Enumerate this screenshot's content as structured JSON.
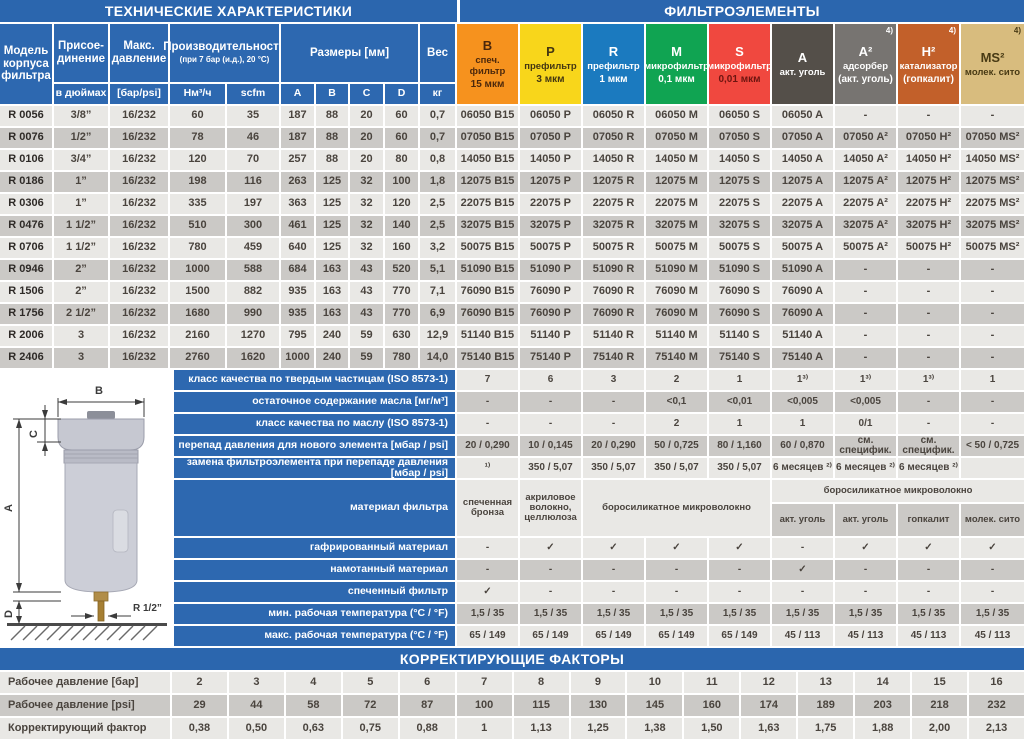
{
  "titles": {
    "tech": "ТЕХНИЧЕСКИЕ ХАРАКТЕРИСТИКИ",
    "elements": "ФИЛЬТРОЭЛЕМЕНТЫ",
    "correction": "КОРРЕКТИРУЮЩИЕ ФАКТОРЫ"
  },
  "colors": {
    "accent_blue": "#2b66ae",
    "row_light": "#e9e8e5",
    "row_dark": "#cbc9c6"
  },
  "tech_header": {
    "model": "Модель\nкорпуса\nфильтра",
    "connection": "Присое-\nдинение",
    "connection_sub": "в дюймах",
    "max_pressure": "Макс.\nдавление",
    "max_pressure_sub": "[бар/psi]",
    "capacity": "Производительность",
    "capacity_note": "(при 7 бар (и.д.), 20 °C)",
    "capacity_sub_nm3": "Нм³/ч",
    "capacity_sub_scfm": "scfm",
    "dimensions": "Размеры [мм]",
    "dim_subs": [
      "A",
      "B",
      "C",
      "D"
    ],
    "weight": "Вес",
    "weight_sub": "кг"
  },
  "element_headers": [
    {
      "code": "B",
      "l1": "спеч. фильтр",
      "l2": "15 мкм",
      "note": "",
      "bg": "#f6921e",
      "fg": "#4c280c",
      "fg2": "#4c280c"
    },
    {
      "code": "P",
      "l1": "префильтр",
      "l2": "3 мкм",
      "note": "",
      "bg": "#f8d61b",
      "fg": "#443712",
      "fg2": "#443712"
    },
    {
      "code": "R",
      "l1": "префильтр",
      "l2": "1 мкм",
      "note": "",
      "bg": "#1b7abf",
      "fg": "#ffffff",
      "fg2": "#ffffff"
    },
    {
      "code": "M",
      "l1": "микрофильтр",
      "l2": "0,1 мкм",
      "note": "",
      "bg": "#10a452",
      "fg": "#ffffff",
      "fg2": "#ffffff"
    },
    {
      "code": "S",
      "l1": "микрофильтр",
      "l2": "0,01 мкм",
      "note": "",
      "bg": "#f0483f",
      "fg": "#ffffff",
      "fg2": "#6d1510"
    },
    {
      "code": "A",
      "l1": "акт. уголь",
      "l2": "",
      "note": "",
      "bg": "#544f49",
      "fg": "#ffffff",
      "fg2": "#ffffff"
    },
    {
      "code": "A²",
      "l1": "адсорбер",
      "l2": "(акт. уголь)",
      "note": "4)",
      "bg": "#777471",
      "fg": "#ffffff",
      "fg2": "#ffffff"
    },
    {
      "code": "H²",
      "l1": "катализатор",
      "l2": "(гопкалит)",
      "note": "4)",
      "bg": "#c2602a",
      "fg": "#ffffff",
      "fg2": "#ffffff"
    },
    {
      "code": "MS²",
      "l1": "молек. сито",
      "l2": "",
      "note": "4)",
      "bg": "#d8bc7e",
      "fg": "#483a14",
      "fg2": "#483a14"
    }
  ],
  "body_rows": [
    {
      "model": "R 0056",
      "tech": [
        "3/8”",
        "16/232",
        "60",
        "35",
        "187",
        "88",
        "20",
        "60",
        "0,7"
      ],
      "elements": [
        "06050 B15",
        "06050 P",
        "06050 R",
        "06050 M",
        "06050 S",
        "06050 A",
        "-",
        "-",
        "-"
      ]
    },
    {
      "model": "R 0076",
      "tech": [
        "1/2”",
        "16/232",
        "78",
        "46",
        "187",
        "88",
        "20",
        "60",
        "0,7"
      ],
      "elements": [
        "07050 B15",
        "07050 P",
        "07050 R",
        "07050 M",
        "07050 S",
        "07050 A",
        "07050 A²",
        "07050 H²",
        "07050 MS²"
      ]
    },
    {
      "model": "R 0106",
      "tech": [
        "3/4”",
        "16/232",
        "120",
        "70",
        "257",
        "88",
        "20",
        "80",
        "0,8"
      ],
      "elements": [
        "14050 B15",
        "14050 P",
        "14050 R",
        "14050 M",
        "14050 S",
        "14050 A",
        "14050 A²",
        "14050 H²",
        "14050 MS²"
      ]
    },
    {
      "model": "R 0186",
      "tech": [
        "1”",
        "16/232",
        "198",
        "116",
        "263",
        "125",
        "32",
        "100",
        "1,8"
      ],
      "elements": [
        "12075 B15",
        "12075 P",
        "12075 R",
        "12075 M",
        "12075 S",
        "12075 A",
        "12075 A²",
        "12075 H²",
        "12075 MS²"
      ]
    },
    {
      "model": "R 0306",
      "tech": [
        "1”",
        "16/232",
        "335",
        "197",
        "363",
        "125",
        "32",
        "120",
        "2,5"
      ],
      "elements": [
        "22075 B15",
        "22075 P",
        "22075 R",
        "22075 M",
        "22075 S",
        "22075 A",
        "22075 A²",
        "22075 H²",
        "22075 MS²"
      ]
    },
    {
      "model": "R 0476",
      "tech": [
        "1 1/2”",
        "16/232",
        "510",
        "300",
        "461",
        "125",
        "32",
        "140",
        "2,5"
      ],
      "elements": [
        "32075 B15",
        "32075 P",
        "32075 R",
        "32075 M",
        "32075 S",
        "32075 A",
        "32075 A²",
        "32075 H²",
        "32075 MS²"
      ]
    },
    {
      "model": "R 0706",
      "tech": [
        "1 1/2”",
        "16/232",
        "780",
        "459",
        "640",
        "125",
        "32",
        "160",
        "3,2"
      ],
      "elements": [
        "50075 B15",
        "50075 P",
        "50075 R",
        "50075 M",
        "50075 S",
        "50075 A",
        "50075 A²",
        "50075 H²",
        "50075 MS²"
      ]
    },
    {
      "model": "R 0946",
      "tech": [
        "2”",
        "16/232",
        "1000",
        "588",
        "684",
        "163",
        "43",
        "520",
        "5,1"
      ],
      "elements": [
        "51090 B15",
        "51090 P",
        "51090 R",
        "51090 M",
        "51090 S",
        "51090 A",
        "-",
        "-",
        "-"
      ]
    },
    {
      "model": "R 1506",
      "tech": [
        "2”",
        "16/232",
        "1500",
        "882",
        "935",
        "163",
        "43",
        "770",
        "7,1"
      ],
      "elements": [
        "76090 B15",
        "76090 P",
        "76090 R",
        "76090 M",
        "76090 S",
        "76090 A",
        "-",
        "-",
        "-"
      ]
    },
    {
      "model": "R 1756",
      "tech": [
        "2 1/2”",
        "16/232",
        "1680",
        "990",
        "935",
        "163",
        "43",
        "770",
        "6,9"
      ],
      "elements": [
        "76090 B15",
        "76090 P",
        "76090 R",
        "76090 M",
        "76090 S",
        "76090 A",
        "-",
        "-",
        "-"
      ]
    },
    {
      "model": "R 2006",
      "tech": [
        "3",
        "16/232",
        "2160",
        "1270",
        "795",
        "240",
        "59",
        "630",
        "12,9"
      ],
      "elements": [
        "51140 B15",
        "51140 P",
        "51140 R",
        "51140 M",
        "51140 S",
        "51140 A",
        "-",
        "-",
        "-"
      ]
    },
    {
      "model": "R 2406",
      "tech": [
        "3",
        "16/232",
        "2760",
        "1620",
        "1000",
        "240",
        "59",
        "780",
        "14,0"
      ],
      "elements": [
        "75140 B15",
        "75140 P",
        "75140 R",
        "75140 M",
        "75140 S",
        "75140 A",
        "-",
        "-",
        "-"
      ]
    }
  ],
  "spec_rows_top": [
    {
      "label": "класс качества по твердым частицам (ISO 8573-1)",
      "values": [
        "7",
        "6",
        "3",
        "2",
        "1",
        "1³⁾",
        "1³⁾",
        "1³⁾",
        "1"
      ]
    },
    {
      "label": "остаточное содержание масла [мг/м³]",
      "values": [
        "-",
        "-",
        "-",
        "<0,1",
        "<0,01",
        "<0,005",
        "<0,005",
        "-",
        "-"
      ]
    },
    {
      "label": "класс качества по маслу (ISO 8573-1)",
      "values": [
        "-",
        "-",
        "-",
        "2",
        "1",
        "1",
        "0/1",
        "-",
        "-"
      ]
    },
    {
      "label": "перепад давления для нового элемента [мбар / psi]",
      "values": [
        "20 / 0,290",
        "10 / 0,145",
        "20 / 0,290",
        "50 / 0,725",
        "80 / 1,160",
        "60 / 0,870",
        "см. специфик.",
        "см. специфик.",
        "< 50 / 0,725"
      ]
    },
    {
      "label": "замена фильтроэлемента при перепаде давления [мбар / psi]",
      "values": [
        "¹⁾",
        "350 / 5,07",
        "350 / 5,07",
        "350 / 5,07",
        "350 / 5,07",
        "6 месяцев ²⁾",
        "6 месяцев ²⁾",
        "6 месяцев ²⁾",
        ""
      ]
    }
  ],
  "material_row": {
    "label": "материал фильтра",
    "b": "спеченная\nбронза",
    "p": "акриловое\nволокно,\nцеллюлоза",
    "rms": "боросиликатное микроволокно",
    "right_top": "боросиликатное микроволокно",
    "right_subs": [
      "акт. уголь",
      "акт. уголь",
      "гопкалит",
      "молек. сито"
    ]
  },
  "spec_rows_bottom": [
    {
      "label": "гафрированный материал",
      "values": [
        "-",
        "✓",
        "✓",
        "✓",
        "✓",
        "-",
        "✓",
        "✓",
        "✓"
      ]
    },
    {
      "label": "намотанный материал",
      "values": [
        "-",
        "-",
        "-",
        "-",
        "-",
        "✓",
        "-",
        "-",
        "-"
      ]
    },
    {
      "label": "спеченный фильтр",
      "values": [
        "✓",
        "-",
        "-",
        "-",
        "-",
        "-",
        "-",
        "-",
        "-"
      ]
    },
    {
      "label": "мин. рабочая температура (°C / °F)",
      "values": [
        "1,5 / 35",
        "1,5 / 35",
        "1,5 / 35",
        "1,5 / 35",
        "1,5 / 35",
        "1,5 / 35",
        "1,5 / 35",
        "1,5 / 35",
        "1,5 / 35"
      ]
    },
    {
      "label": "макс. рабочая температура  (°C / °F)",
      "values": [
        "65 / 149",
        "65 / 149",
        "65 / 149",
        "65 / 149",
        "65 / 149",
        "45 / 113",
        "45 / 113",
        "45 / 113",
        "45 / 113"
      ]
    }
  ],
  "diagram": {
    "dim_a": "A",
    "dim_b": "B",
    "dim_c": "C",
    "dim_d": "D",
    "thread": "R 1/2”"
  },
  "correction_rows": [
    {
      "label": "Рабочее давление [бар]",
      "values": [
        "2",
        "3",
        "4",
        "5",
        "6",
        "7",
        "8",
        "9",
        "10",
        "11",
        "12",
        "13",
        "14",
        "15",
        "16"
      ]
    },
    {
      "label": "Рабочее давление [psi]",
      "values": [
        "29",
        "44",
        "58",
        "72",
        "87",
        "100",
        "115",
        "130",
        "145",
        "160",
        "174",
        "189",
        "203",
        "218",
        "232"
      ]
    },
    {
      "label": "Корректирующий фактор",
      "values": [
        "0,38",
        "0,50",
        "0,63",
        "0,75",
        "0,88",
        "1",
        "1,13",
        "1,25",
        "1,38",
        "1,50",
        "1,63",
        "1,75",
        "1,88",
        "2,00",
        "2,13"
      ]
    }
  ]
}
